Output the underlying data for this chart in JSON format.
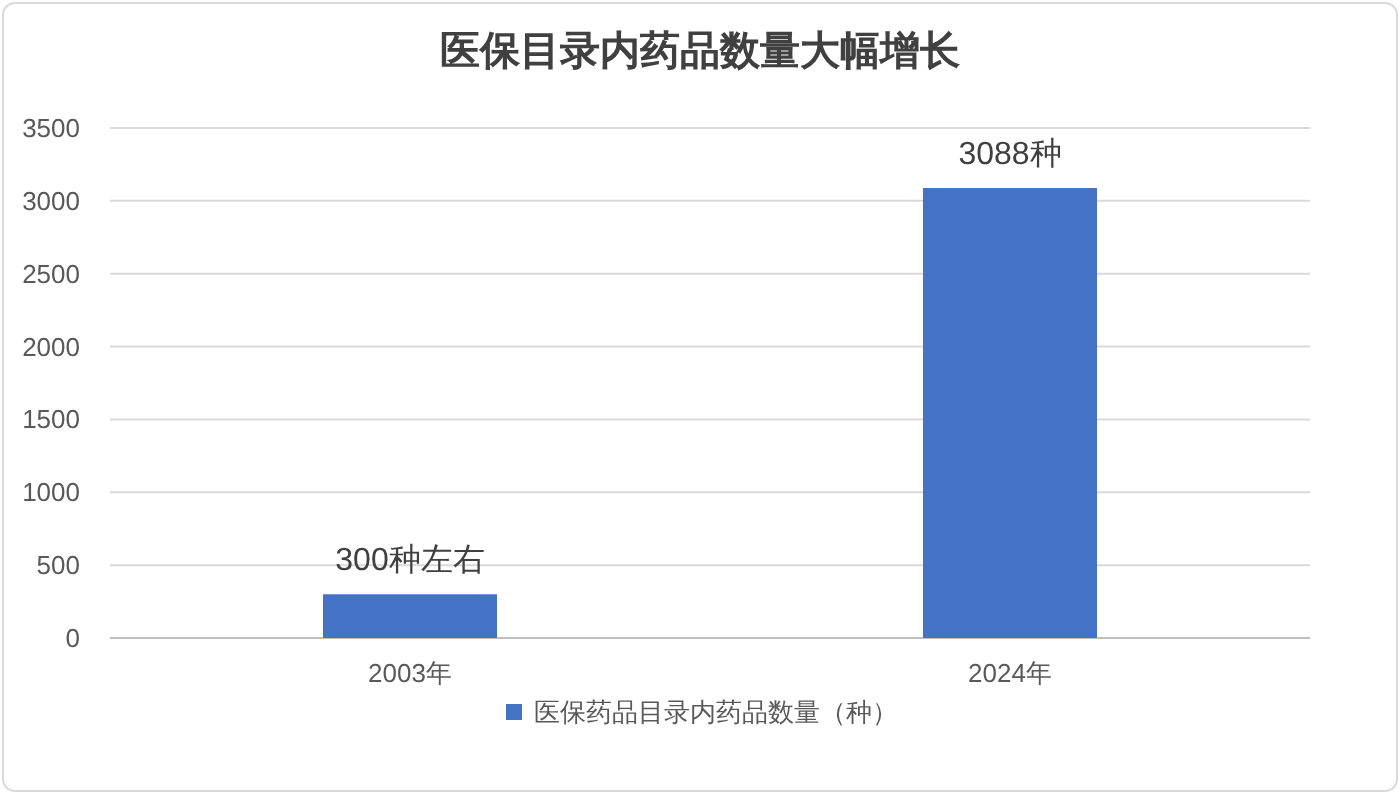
{
  "chart_data": {
    "type": "bar",
    "title": "医保目录内药品数量大幅增长",
    "categories": [
      "2003年",
      "2024年"
    ],
    "series": [
      {
        "name": "医保药品目录内药品数量（种）",
        "color": "#4472c4",
        "values": [
          300,
          3088
        ],
        "value_labels": [
          "300种左右",
          "3088种"
        ]
      }
    ],
    "ylim": [
      0,
      3500
    ],
    "yticks": [
      0,
      500,
      1000,
      1500,
      2000,
      2500,
      3000,
      3500
    ],
    "grid": "y",
    "legend": "bottom"
  }
}
